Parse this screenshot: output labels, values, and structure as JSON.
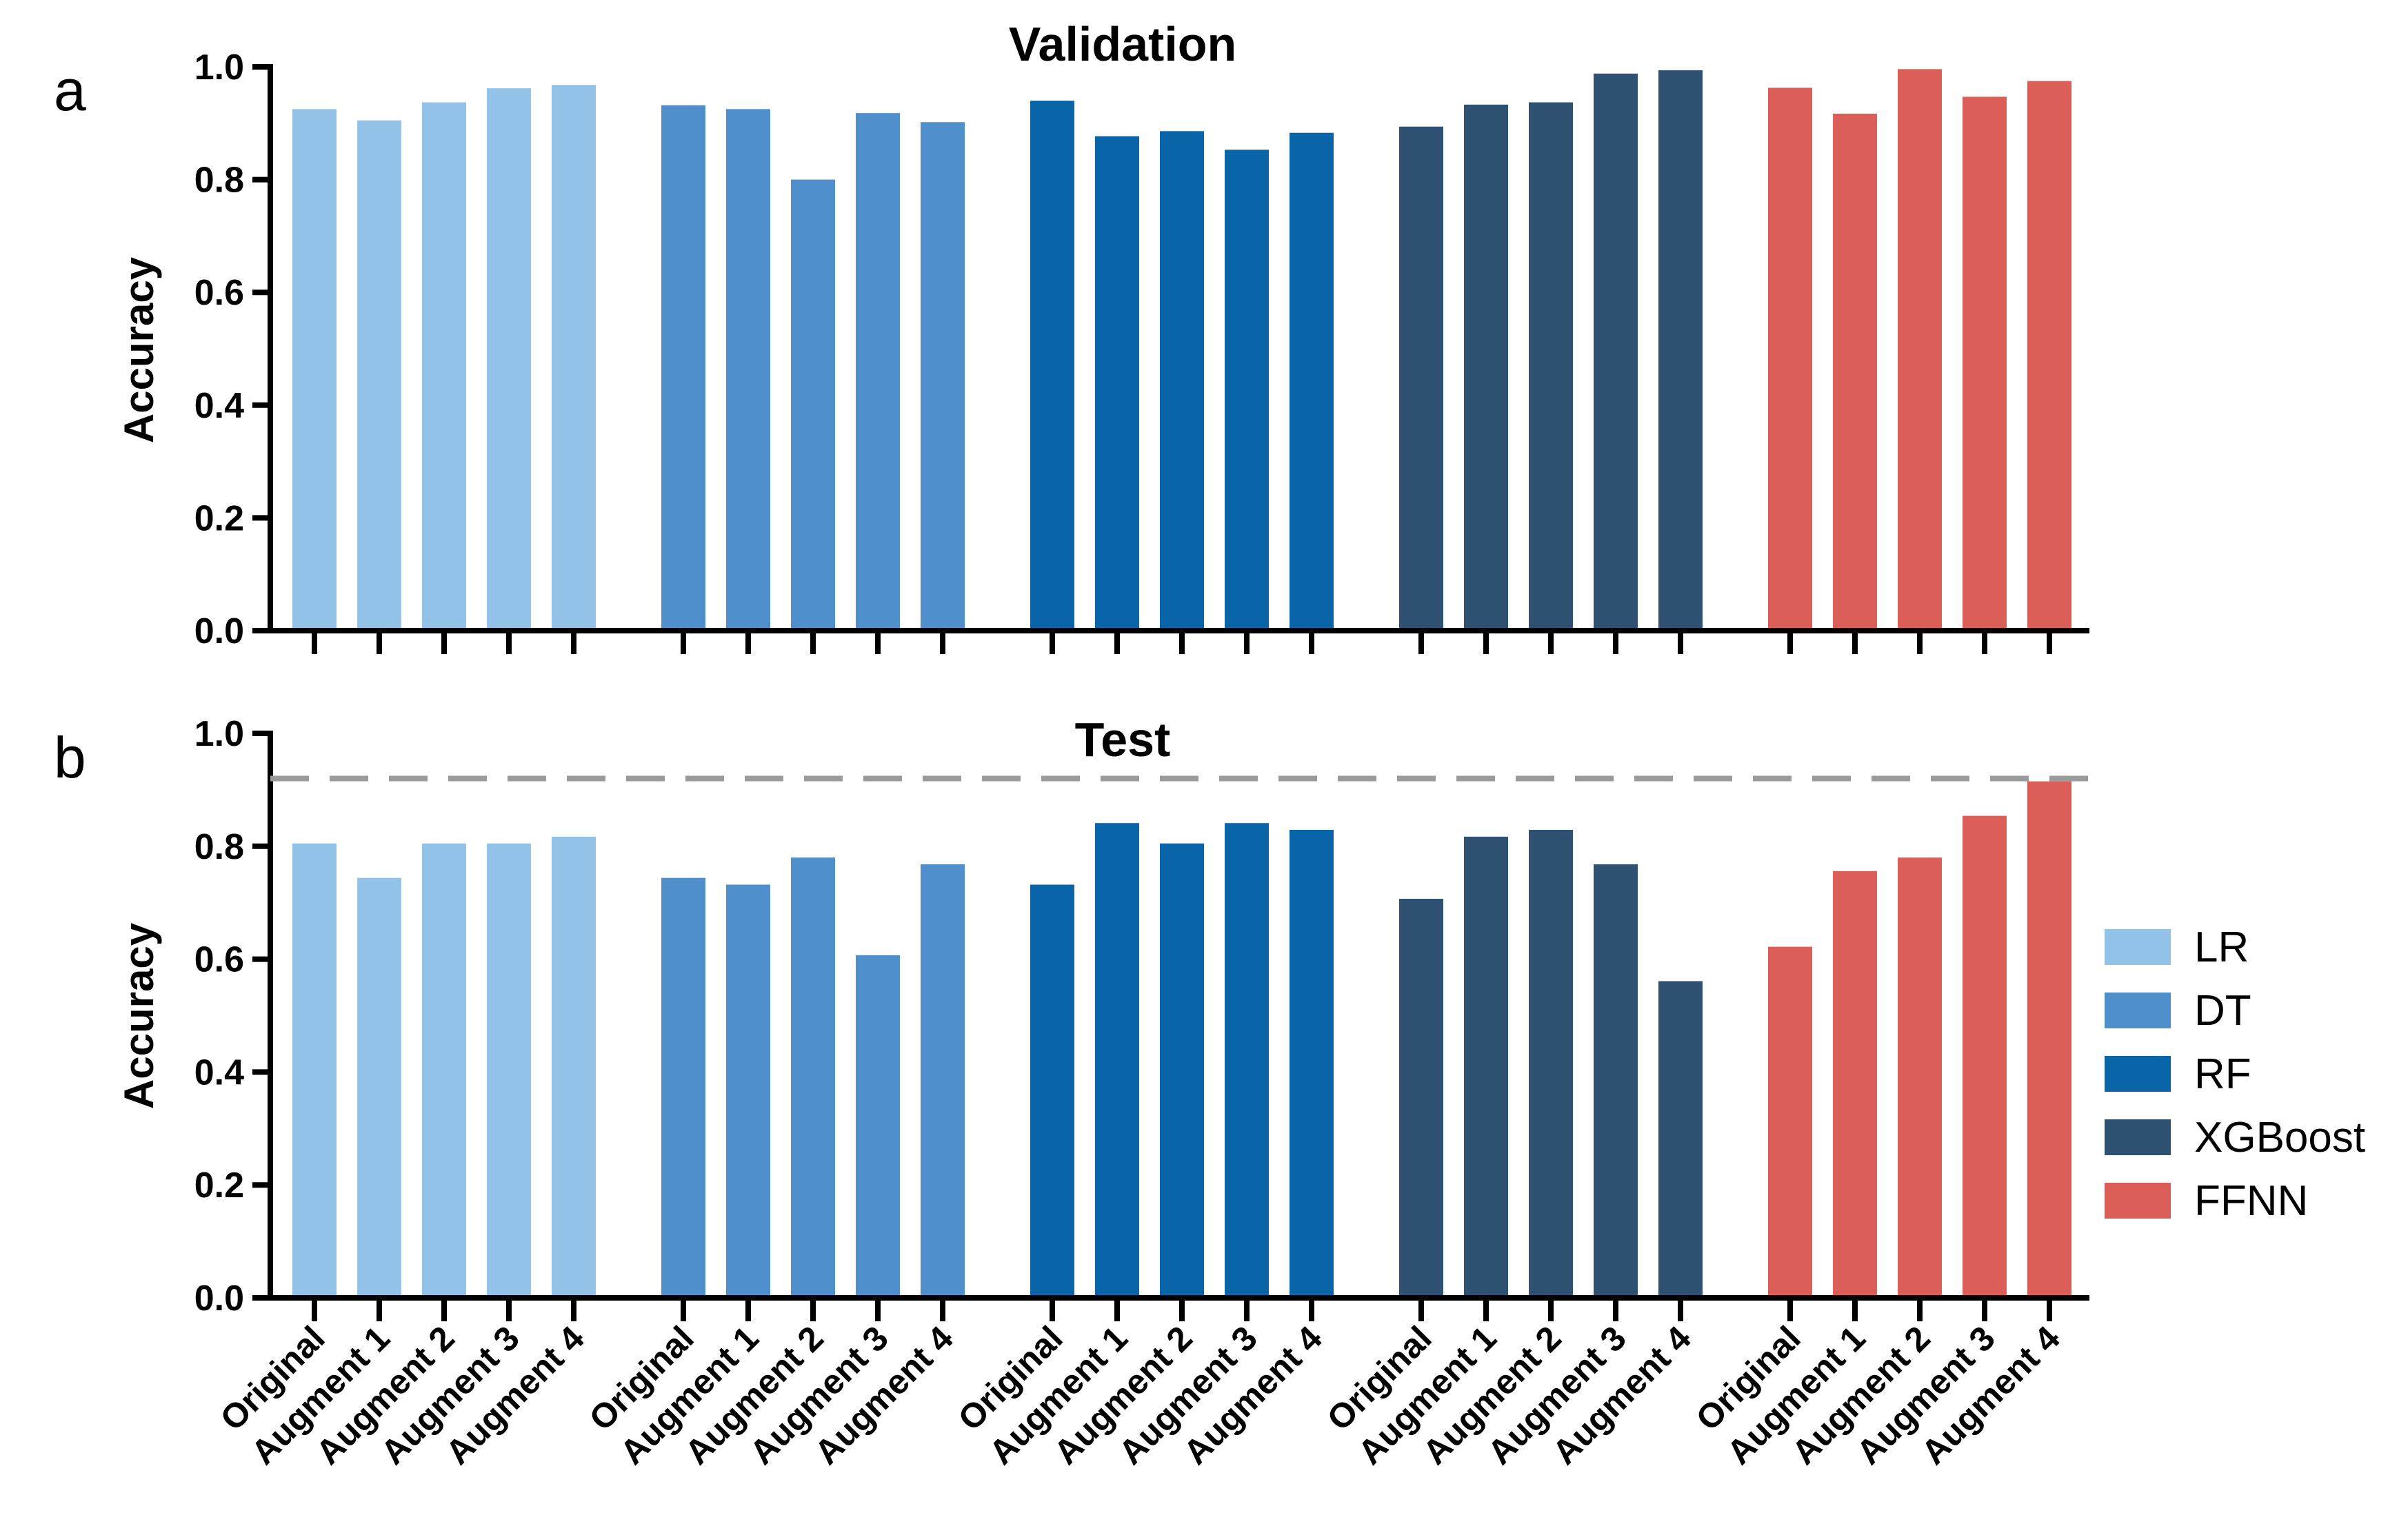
{
  "chart_data": [
    {
      "type": "bar",
      "panel": "a",
      "title": "Validation",
      "xlabel": "",
      "ylabel": "Accuracy",
      "ylim": [
        0,
        1.0
      ],
      "yticks": [
        "0.0",
        "0.2",
        "0.4",
        "0.6",
        "0.8",
        "1.0"
      ],
      "categories": [
        "Original",
        "Augment 1",
        "Augment 2",
        "Augment 3",
        "Augment 4"
      ],
      "series": [
        {
          "name": "LR",
          "values": [
            0.925,
            0.905,
            0.937,
            0.962,
            0.968
          ]
        },
        {
          "name": "DT",
          "values": [
            0.932,
            0.925,
            0.8,
            0.918,
            0.902
          ]
        },
        {
          "name": "RF",
          "values": [
            0.94,
            0.877,
            0.886,
            0.853,
            0.883
          ]
        },
        {
          "name": "XGBoost",
          "values": [
            0.894,
            0.933,
            0.937,
            0.988,
            0.994
          ]
        },
        {
          "name": "FFNN",
          "values": [
            0.963,
            0.917,
            0.996,
            0.947,
            0.975
          ]
        }
      ]
    },
    {
      "type": "bar",
      "panel": "b",
      "title": "Test",
      "xlabel": "",
      "ylabel": "Accuracy",
      "ylim": [
        0,
        1.0
      ],
      "yticks": [
        "0.0",
        "0.2",
        "0.4",
        "0.6",
        "0.8",
        "1.0"
      ],
      "reference_line": 0.92,
      "categories": [
        "Original",
        "Augment 1",
        "Augment 2",
        "Augment 3",
        "Augment 4"
      ],
      "series": [
        {
          "name": "LR",
          "values": [
            0.805,
            0.744,
            0.805,
            0.805,
            0.817
          ]
        },
        {
          "name": "DT",
          "values": [
            0.744,
            0.732,
            0.78,
            0.607,
            0.768
          ]
        },
        {
          "name": "RF",
          "values": [
            0.732,
            0.841,
            0.805,
            0.841,
            0.829
          ]
        },
        {
          "name": "XGBoost",
          "values": [
            0.707,
            0.817,
            0.829,
            0.768,
            0.561
          ]
        },
        {
          "name": "FFNN",
          "values": [
            0.622,
            0.756,
            0.78,
            0.854,
            0.915
          ]
        }
      ]
    }
  ],
  "legend": {
    "position": "right",
    "items": [
      {
        "label": "LR",
        "color": "#93c3e8"
      },
      {
        "label": "DT",
        "color": "#4f8fcb"
      },
      {
        "label": "RF",
        "color": "#0a64a8"
      },
      {
        "label": "XGBoost",
        "color": "#2f5172"
      },
      {
        "label": "FFNN",
        "color": "#dc5e58"
      }
    ]
  },
  "colors": {
    "axis": "#000000",
    "reference_line": "#9a9a9a"
  }
}
